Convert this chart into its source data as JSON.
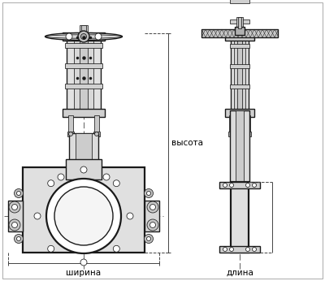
{
  "bg_color": "#ffffff",
  "line_color": "#1a1a1a",
  "dim_color": "#444444",
  "label_color": "#000000",
  "label_shirna": "ширина",
  "label_dlina": "длина",
  "label_vysota": "высота",
  "fig_width": 4.0,
  "fig_height": 3.46,
  "dpi": 100
}
